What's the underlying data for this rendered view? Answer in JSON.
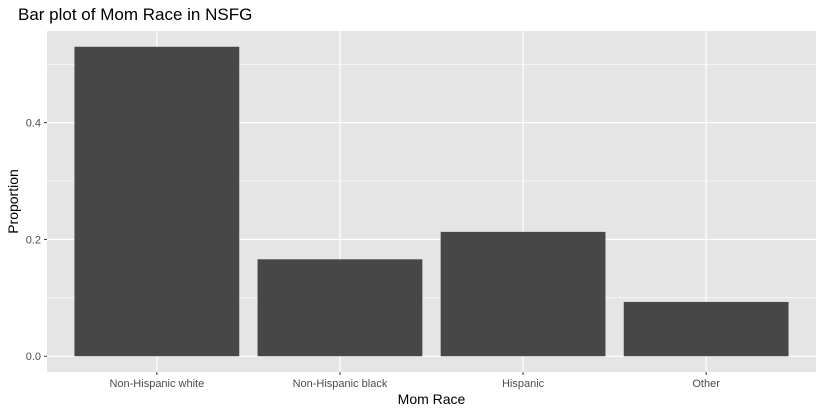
{
  "chart_data": {
    "type": "bar",
    "title": "Bar plot of Mom Race in NSFG",
    "xlabel": "Mom Race",
    "ylabel": "Proportion",
    "categories": [
      "Non-Hispanic white",
      "Non-Hispanic black",
      "Hispanic",
      "Other"
    ],
    "values": [
      0.53,
      0.166,
      0.213,
      0.093
    ],
    "ylim": [
      -0.027,
      0.557
    ],
    "yticks": [
      0.0,
      0.2,
      0.4
    ],
    "ytick_labels": [
      "0.0",
      "0.2",
      "0.4"
    ],
    "grid": true,
    "legend": "none"
  },
  "colors": {
    "panel_background": "#e5e5e5",
    "grid_major": "#ffffff",
    "bar_fill": "#474747",
    "tick_text": "#4d4d4d",
    "tick_mark": "#333333"
  }
}
